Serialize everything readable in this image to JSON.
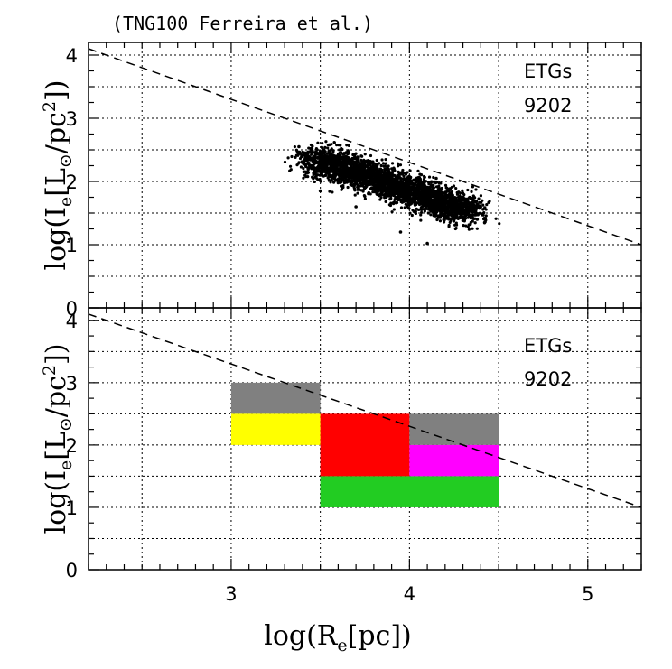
{
  "title": "(TNG100 Ferreira et al.)",
  "xaxis": {
    "label_prefix": "log(R",
    "label_sub": "e",
    "label_suffix": "[pc])",
    "range": [
      2.2,
      5.3
    ],
    "major_ticks": [
      3,
      4,
      5
    ],
    "major_tick_labels": [
      "3",
      "4",
      "5"
    ],
    "grid_values": [
      2.5,
      3,
      3.5,
      4,
      4.5,
      5
    ]
  },
  "yaxis": {
    "label_prefix": "log(I",
    "label_sub": "e",
    "label_bracket": "[L",
    "label_sun": "⊙",
    "label_unit": "/pc",
    "label_sup": "2",
    "label_suffix": "])",
    "range": [
      0,
      4.2
    ],
    "major_ticks": [
      0,
      1,
      2,
      3,
      4
    ],
    "major_tick_labels": [
      "0",
      "1",
      "2",
      "3",
      "4"
    ],
    "grid_values": [
      0.5,
      1,
      1.5,
      2,
      2.5,
      3,
      3.5,
      4
    ]
  },
  "chart_data": [
    {
      "type": "scatter",
      "panel": "top",
      "annotation": {
        "label": "ETGs",
        "count": "9202"
      },
      "reference_line": {
        "style": "dashed",
        "points": [
          [
            2.2,
            4.1
          ],
          [
            5.3,
            1.0
          ]
        ]
      },
      "series": [
        {
          "name": "ETGs",
          "color": "#000000",
          "n_points": 9202,
          "core_points": [
            [
              3.45,
              2.35
            ],
            [
              3.6,
              2.25
            ],
            [
              3.75,
              2.1
            ],
            [
              3.9,
              1.95
            ],
            [
              4.05,
              1.8
            ],
            [
              4.2,
              1.65
            ],
            [
              4.35,
              1.5
            ]
          ],
          "spread_x": 0.06,
          "spread_y": 0.12,
          "outliers": [
            [
              3.38,
              2.55
            ],
            [
              3.55,
              2.58
            ],
            [
              3.7,
              1.6
            ],
            [
              3.95,
              1.2
            ],
            [
              4.1,
              1.02
            ],
            [
              4.38,
              1.4
            ],
            [
              4.15,
              2.05
            ],
            [
              3.5,
              1.85
            ]
          ]
        }
      ]
    },
    {
      "type": "heatmap",
      "panel": "bottom",
      "annotation": {
        "label": "ETGs",
        "count": "9202"
      },
      "reference_line": {
        "style": "dashed",
        "points": [
          [
            2.2,
            4.1
          ],
          [
            5.3,
            1.0
          ]
        ]
      },
      "cells": [
        {
          "x": [
            3.0,
            3.5
          ],
          "y": [
            2.5,
            3.0
          ],
          "color": "#808080"
        },
        {
          "x": [
            3.0,
            3.5
          ],
          "y": [
            2.0,
            2.5
          ],
          "color": "#ffff00"
        },
        {
          "x": [
            3.5,
            4.0
          ],
          "y": [
            1.5,
            2.5
          ],
          "color": "#ff0000"
        },
        {
          "x": [
            4.0,
            4.5
          ],
          "y": [
            2.0,
            2.5
          ],
          "color": "#808080"
        },
        {
          "x": [
            4.0,
            4.5
          ],
          "y": [
            1.5,
            2.0
          ],
          "color": "#ff00ff"
        },
        {
          "x": [
            3.5,
            4.5
          ],
          "y": [
            1.0,
            1.5
          ],
          "color": "#22cc22"
        }
      ]
    }
  ]
}
